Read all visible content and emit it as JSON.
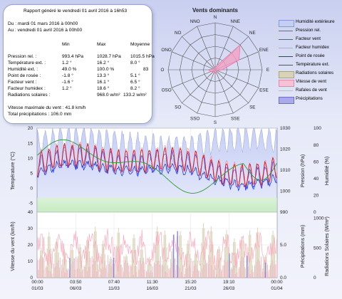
{
  "report": {
    "title": "Rapport généré le vendredi 01 avril 2016 à 16h53",
    "period_from": "Du : mardi 01 mars 2016 à 00h00",
    "period_to": "Au : vendredi 01 avril 2016 à 00h00",
    "headers": [
      "Min",
      "Max",
      "Moyenne"
    ],
    "rows": [
      {
        "label": "Pression rel. :",
        "min": "993.4 hPa",
        "max": "1028.7 hPa",
        "avg": "1015.5 hPa"
      },
      {
        "label": "Température ext. :",
        "min": "1.2 °",
        "max": "16.2 °",
        "avg": "8.0 °"
      },
      {
        "label": "Humidité ext. :",
        "min": "49.0 %",
        "max": "100.0 %",
        "avg": "83"
      },
      {
        "label": "Point de rosée :",
        "min": "-1.8 °",
        "max": "13.3 °",
        "avg": "5.1 °"
      },
      {
        "label": "Facteur vent :",
        "min": "-1.6 °",
        "max": "16.1 °",
        "avg": "6.5 °"
      },
      {
        "label": "Facteur humidex :",
        "min": "1.2 °",
        "max": "18.6 °",
        "avg": "8.2 °"
      },
      {
        "label": "Radiations solaires :",
        "min": "",
        "max": "968.0 w/m²",
        "avg": "133.2 w/m²"
      }
    ],
    "wind_max": "Vitesse maximale du vent : 41.8 km/h",
    "total_precip": "Total précipitations : 106.0 mm"
  },
  "chart_data": [
    {
      "type": "radar",
      "title": "Vents dominants",
      "directions": [
        "N",
        "NNE",
        "NE",
        "ENE",
        "E",
        "ESE",
        "SE",
        "SSE",
        "S",
        "SSO",
        "SO",
        "OSO",
        "O",
        "ONO",
        "NO",
        "NNO"
      ],
      "series": [
        {
          "values": [
            0.05,
            0.1,
            0.75,
            0.55,
            0.15,
            0.05,
            0.05,
            0.05,
            0.1,
            0.05,
            0.05,
            0.1,
            0.15,
            0.05,
            0.05,
            0.05
          ]
        }
      ],
      "colors": {
        "fill": "#f2a0c4",
        "stroke": "#e27aa6"
      }
    },
    {
      "type": "line",
      "x_tick_labels": [
        {
          "top": "00:00",
          "bottom": "01/03",
          "frac": 0.0
        },
        {
          "top": "03:50",
          "bottom": "06/03",
          "frac": 0.16
        },
        {
          "top": "07:40",
          "bottom": "11/03",
          "frac": 0.32
        },
        {
          "top": "11:30",
          "bottom": "16/03",
          "frac": 0.48
        },
        {
          "top": "15:20",
          "bottom": "21/03",
          "frac": 0.64
        },
        {
          "top": "19:10",
          "bottom": "26/03",
          "frac": 0.8
        },
        {
          "top": "00:00",
          "bottom": "01/04",
          "frac": 1.0
        }
      ],
      "y_left_label": "Température (°C)",
      "y_left_ticks": [
        "20",
        "15",
        "10",
        "5",
        "0",
        "-5"
      ],
      "y_left_range": [
        -8,
        20
      ],
      "y_right1_label": "Pression (hPa)",
      "y_right1_ticks": [
        "1030",
        "1020",
        "1010",
        "1000",
        "990"
      ],
      "y_right2_label": "Humidité (%)",
      "y_right2_ticks": [
        "100",
        "80",
        "60",
        "40",
        "20",
        "0"
      ],
      "series": [
        {
          "name": "Humidité extérieure",
          "color": "#b9c3f0"
        },
        {
          "name": "Pression rel.",
          "color": "#2e9a2e"
        },
        {
          "name": "Facteur vent",
          "color": "#3b5bff"
        },
        {
          "name": "Facteur humidex",
          "color": "#ff8fa0"
        },
        {
          "name": "Point de rosée",
          "color": "#2233dd"
        },
        {
          "name": "Température ext.",
          "color": "#e01818"
        }
      ]
    },
    {
      "type": "bar",
      "y_left_label": "Vitesse du vent (km/h)",
      "y_left_ticks": [
        "40",
        "30",
        "20",
        "10",
        "0"
      ],
      "y_left_range": [
        0,
        40
      ],
      "y_right1_label": "Précipitations (mm)",
      "y_right1_ticks": [
        "5.0",
        "0.0"
      ],
      "y_right2_label": "Radiations Solaires (W/m²)",
      "y_right2_ticks": [
        "1000",
        "500",
        "0"
      ],
      "series": [
        {
          "name": "Radiations solaires",
          "color": "#c9c2a6"
        },
        {
          "name": "Vitesse de vent",
          "color": "#f4a6c0"
        },
        {
          "name": "Rafales de vent",
          "color": "#ffc0d0"
        },
        {
          "name": "Précipitations",
          "color": "#8a8ae0"
        }
      ]
    }
  ],
  "legend": [
    {
      "label": "Humidité extérieure",
      "kind": "box",
      "color": "#c5cef3",
      "border": "#8b98d8"
    },
    {
      "label": "Pression rel.",
      "kind": "line",
      "color": "#2e9a2e"
    },
    {
      "label": "Facteur vent",
      "kind": "line",
      "color": "#3b5bff"
    },
    {
      "label": "Facteur humidex",
      "kind": "line",
      "color": "#ff8fa0"
    },
    {
      "label": "Point de rosée",
      "kind": "line",
      "color": "#2233dd"
    },
    {
      "label": "Température ext.",
      "kind": "line",
      "color": "#e01818"
    },
    {
      "label": "Radiations solaires",
      "kind": "box",
      "color": "#d8d2b6",
      "border": "#a9a283"
    },
    {
      "label": "Vitesse de vent",
      "kind": "box",
      "color": "#f7c1d4",
      "border": "#e08aa8"
    },
    {
      "label": "Rafales de vent",
      "kind": "line",
      "color": "#ff9db5"
    },
    {
      "label": "Précipitations",
      "kind": "box",
      "color": "#a9a9ec",
      "border": "#6d6dd0"
    }
  ]
}
